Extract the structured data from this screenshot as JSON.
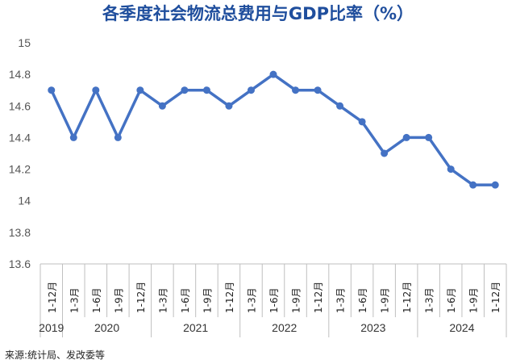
{
  "colors": {
    "series": "#4472c4",
    "title": "#1f4e9d",
    "axis": "#bfbfbf",
    "text": "#333333"
  },
  "chart_data": {
    "type": "line",
    "title": "各季度社会物流总费用与GDP比率（%）",
    "ylim": [
      13.6,
      15
    ],
    "yticks": [
      "15",
      "14.8",
      "14.6",
      "14.4",
      "14.2",
      "14",
      "13.8",
      "13.6"
    ],
    "ytick_values": [
      15,
      14.8,
      14.6,
      14.4,
      14.2,
      14,
      13.8,
      13.6
    ],
    "grid": false,
    "categories": [
      "1-12月",
      "1-3月",
      "1-6月",
      "1-9月",
      "1-12月",
      "1-3月",
      "1-6月",
      "1-9月",
      "1-12月",
      "1-3月",
      "1-6月",
      "1-9月",
      "1-12月",
      "1-3月",
      "1-6月",
      "1-9月",
      "1-12月",
      "1-3月",
      "1-6月",
      "1-9月",
      "1-12月"
    ],
    "years": [
      {
        "label": "2019",
        "count": 1
      },
      {
        "label": "2020",
        "count": 4
      },
      {
        "label": "2021",
        "count": 4
      },
      {
        "label": "2022",
        "count": 4
      },
      {
        "label": "2023",
        "count": 4
      },
      {
        "label": "2024",
        "count": 4
      }
    ],
    "series": [
      {
        "values": [
          14.7,
          14.4,
          14.7,
          14.4,
          14.7,
          14.6,
          14.7,
          14.7,
          14.6,
          14.7,
          14.8,
          14.7,
          14.7,
          14.6,
          14.5,
          14.3,
          14.4,
          14.4,
          14.2,
          14.1,
          14.1
        ]
      }
    ]
  },
  "source": "来源:统计局、发改委等"
}
